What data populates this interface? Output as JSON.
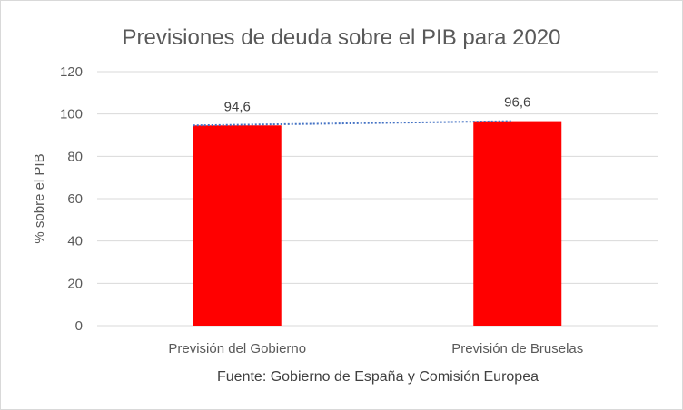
{
  "chart_data": {
    "type": "bar",
    "title": "Previsiones de deuda sobre el PIB para 2020",
    "xlabel": "",
    "ylabel": "% sobre el PIB",
    "categories": [
      "Previsión del Gobierno",
      "Previsión de Bruselas"
    ],
    "values": [
      94.6,
      96.6
    ],
    "data_labels": [
      "94,6",
      "96,6"
    ],
    "ylim": [
      0,
      120
    ],
    "yticks": [
      0,
      20,
      40,
      60,
      80,
      100,
      120
    ],
    "bar_color": "#ff0000",
    "trendline": true,
    "trendline_color": "#4472c4",
    "grid": true,
    "source_note": "Fuente: Gobierno de España y Comisión Europea"
  }
}
